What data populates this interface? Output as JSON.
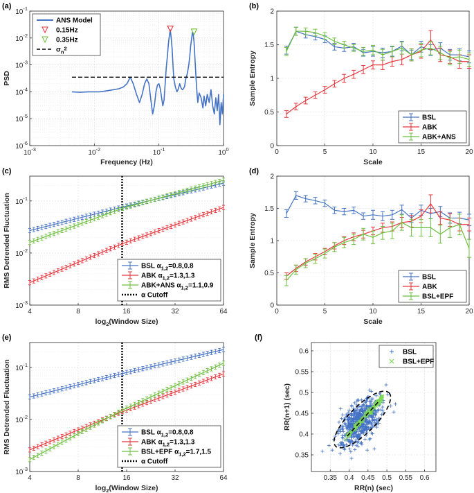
{
  "colors": {
    "BSL": "#4472c4",
    "ABK": "#e8343b",
    "ABK+ANS": "#6cbf3c",
    "BSL+EPF": "#6cbf3c",
    "BSL+EPF_f": "#7ed957",
    "cutoff": "#000000",
    "peak1": "#e8343b",
    "peak2": "#6cbf3c"
  },
  "chart_data": [
    {
      "id": "a",
      "panel_label": "(a)",
      "type": "line",
      "xscale": "log",
      "yscale": "log",
      "xlim": [
        0.001,
        1
      ],
      "ylim": [
        1e-06,
        0.1
      ],
      "xlabel": "Frequency (Hz)",
      "ylabel": "PSD",
      "xticks": [
        0.001,
        0.01,
        0.1,
        1
      ],
      "xtick_labels": [
        "10-3",
        "10-2",
        "10-1",
        "100"
      ],
      "yticks": [
        1e-06,
        1e-05,
        0.0001,
        0.001,
        0.01,
        0.1
      ],
      "ytick_labels": [
        "10-6",
        "10-5",
        "10-4",
        "10-3",
        "10-2",
        "10-1"
      ],
      "legend_position": "top-left",
      "legend": [
        "ANS Model",
        "0.15Hz",
        "0.35Hz",
        "σn2"
      ],
      "series": [
        {
          "name": "ANS Model",
          "x": [
            0.0045,
            0.006,
            0.008,
            0.012,
            0.016,
            0.02,
            0.024,
            0.028,
            0.032,
            0.036,
            0.04,
            0.045,
            0.05,
            0.055,
            0.06,
            0.065,
            0.07,
            0.075,
            0.08,
            0.085,
            0.09,
            0.095,
            0.1,
            0.105,
            0.11,
            0.115,
            0.12,
            0.125,
            0.13,
            0.135,
            0.14,
            0.145,
            0.15,
            0.155,
            0.16,
            0.165,
            0.17,
            0.18,
            0.19,
            0.2,
            0.21,
            0.22,
            0.23,
            0.24,
            0.25,
            0.26,
            0.27,
            0.28,
            0.29,
            0.3,
            0.31,
            0.32,
            0.33,
            0.34,
            0.35,
            0.36,
            0.37,
            0.38,
            0.39,
            0.4,
            0.42,
            0.45,
            0.48,
            0.5,
            0.53,
            0.56,
            0.6,
            0.64,
            0.68,
            0.72,
            0.76,
            0.8,
            0.84,
            0.88,
            0.92,
            0.96,
            1.0
          ],
          "values": [
            0.0001,
            9.6e-05,
            0.0001,
            0.0001,
            0.00011,
            0.00012,
            0.00013,
            0.00015,
            0.0002,
            0.00035,
            0.0002,
            8e-05,
            4e-05,
            8e-05,
            0.0002,
            0.0003,
            0.0002,
            5e-05,
            1.5e-05,
            3e-05,
            0.0001,
            0.00018,
            0.0002,
            0.00013,
            6e-05,
            3e-05,
            5e-05,
            0.0002,
            0.0008,
            0.002,
            0.006,
            0.012,
            0.02,
            0.01,
            0.004,
            0.001,
            0.0003,
            0.00015,
            0.0001,
            0.00013,
            0.0002,
            0.00014,
            0.00012,
            0.00013,
            0.00016,
            0.0003,
            0.0004,
            0.0006,
            0.001,
            0.002,
            0.005,
            0.009,
            0.016,
            0.013,
            0.007,
            0.002,
            0.0006,
            0.0002,
            8e-05,
            4e-05,
            9e-05,
            6e-05,
            2.5e-05,
            7e-05,
            3e-05,
            8e-05,
            4e-05,
            0.00012,
            3e-05,
            1.5e-05,
            6e-05,
            2e-05,
            8e-05,
            6e-06,
            4e-05,
            1.5e-05,
            8e-05
          ]
        },
        {
          "name": "0.15Hz",
          "marker": "triangle-down",
          "x": [
            0.15
          ],
          "values": [
            0.022
          ]
        },
        {
          "name": "0.35Hz",
          "marker": "triangle-down",
          "x": [
            0.35
          ],
          "values": [
            0.017
          ]
        },
        {
          "name": "σn2",
          "style": "dashed",
          "x": [
            0.0045,
            1.0
          ],
          "values": [
            0.00035,
            0.00035
          ]
        }
      ]
    },
    {
      "id": "b",
      "panel_label": "(b)",
      "type": "line",
      "xlim": [
        0,
        20
      ],
      "ylim": [
        0,
        2
      ],
      "xlabel": "Scale",
      "ylabel": "Sample Entropy",
      "xticks": [
        0,
        5,
        10,
        15,
        20
      ],
      "yticks": [
        0,
        0.5,
        1,
        1.5,
        2
      ],
      "legend_position": "bottom-right",
      "legend": [
        "BSL",
        "ABK",
        "ABK+ANS"
      ],
      "x": [
        1,
        2,
        3,
        4,
        5,
        6,
        7,
        8,
        9,
        10,
        11,
        12,
        13,
        14,
        15,
        16,
        17,
        18,
        19,
        20
      ],
      "series": [
        {
          "name": "BSL",
          "values": [
            1.42,
            1.7,
            1.65,
            1.62,
            1.58,
            1.47,
            1.45,
            1.47,
            1.38,
            1.4,
            1.38,
            1.4,
            1.48,
            1.35,
            1.47,
            1.42,
            1.45,
            1.35,
            1.35,
            1.32
          ],
          "errors": [
            0.06,
            0.06,
            0.05,
            0.05,
            0.05,
            0.05,
            0.05,
            0.05,
            0.05,
            0.07,
            0.07,
            0.07,
            0.07,
            0.07,
            0.08,
            0.08,
            0.08,
            0.08,
            0.09,
            0.09
          ]
        },
        {
          "name": "ABK",
          "values": [
            0.47,
            0.58,
            0.67,
            0.75,
            0.83,
            0.92,
            1.0,
            1.06,
            1.13,
            1.2,
            1.2,
            1.25,
            1.28,
            1.35,
            1.4,
            1.57,
            1.35,
            1.32,
            1.25,
            1.25
          ],
          "errors": [
            0.05,
            0.05,
            0.05,
            0.05,
            0.05,
            0.05,
            0.06,
            0.06,
            0.06,
            0.06,
            0.07,
            0.07,
            0.08,
            0.09,
            0.1,
            0.14,
            0.1,
            0.1,
            0.1,
            0.1
          ]
        },
        {
          "name": "ABK+ANS",
          "values": [
            1.4,
            1.7,
            1.7,
            1.68,
            1.63,
            1.55,
            1.5,
            1.45,
            1.4,
            1.42,
            1.35,
            1.4,
            1.45,
            1.35,
            1.42,
            1.45,
            1.38,
            1.3,
            1.32,
            1.28
          ],
          "errors": [
            0.06,
            0.06,
            0.05,
            0.05,
            0.05,
            0.05,
            0.05,
            0.05,
            0.06,
            0.07,
            0.08,
            0.08,
            0.09,
            0.09,
            0.1,
            0.1,
            0.1,
            0.1,
            0.1,
            0.1
          ]
        }
      ]
    },
    {
      "id": "c",
      "panel_label": "(c)",
      "type": "line",
      "xscale": "log2",
      "yscale": "log",
      "xlim": [
        4,
        64
      ],
      "ylim": [
        0.001,
        0.3
      ],
      "xlabel": "log2(Window Size)",
      "ylabel": "RMS Detrended Fluctuation",
      "xticks": [
        4,
        8,
        16,
        32,
        64
      ],
      "yticks": [
        0.001,
        0.01,
        0.1
      ],
      "ytick_labels": [
        "10-3",
        "10-2",
        "10-1"
      ],
      "cutoff_x": 15,
      "legend_position": "bottom-right",
      "legend": [
        "BSL α1,2=0.8,0.8",
        "ABK α1,2=1.3,1.3",
        "ABK+ANS α1,2=1.1,0.9",
        "α Cutoff"
      ],
      "series": [
        {
          "name": "BSL",
          "alpha": "α1,2=0.8,0.8",
          "x0": 4,
          "y0": 0.027,
          "xc": 15,
          "yc": 0.076,
          "x1": 64,
          "y1": 0.22
        },
        {
          "name": "ABK",
          "alpha": "α1,2=1.3,1.3",
          "x0": 4,
          "y0": 0.0027,
          "xc": 15,
          "yc": 0.015,
          "x1": 64,
          "y1": 0.075
        },
        {
          "name": "ABK+ANS",
          "alpha": "α1,2=1.1,0.9",
          "x0": 4,
          "y0": 0.016,
          "xc": 15,
          "yc": 0.072,
          "x1": 64,
          "y1": 0.25
        }
      ]
    },
    {
      "id": "d",
      "panel_label": "(d)",
      "type": "line",
      "xlim": [
        0,
        20
      ],
      "ylim": [
        0,
        2
      ],
      "xlabel": "Scale",
      "ylabel": "Sample Entropy",
      "xticks": [
        0,
        5,
        10,
        15,
        20
      ],
      "yticks": [
        0,
        0.5,
        1,
        1.5,
        2
      ],
      "legend_position": "bottom-right",
      "legend": [
        "BSL",
        "ABK",
        "BSL+EPF"
      ],
      "x": [
        1,
        2,
        3,
        4,
        5,
        6,
        7,
        8,
        9,
        10,
        11,
        12,
        13,
        14,
        15,
        16,
        17,
        18,
        19,
        20
      ],
      "series": [
        {
          "name": "BSL",
          "values": [
            1.42,
            1.7,
            1.65,
            1.62,
            1.58,
            1.47,
            1.45,
            1.47,
            1.38,
            1.4,
            1.38,
            1.4,
            1.48,
            1.35,
            1.47,
            1.42,
            1.45,
            1.35,
            1.35,
            1.32
          ],
          "errors": [
            0.06,
            0.06,
            0.05,
            0.05,
            0.05,
            0.05,
            0.05,
            0.05,
            0.05,
            0.07,
            0.07,
            0.07,
            0.07,
            0.07,
            0.08,
            0.08,
            0.08,
            0.08,
            0.09,
            0.09
          ]
        },
        {
          "name": "ABK",
          "values": [
            0.45,
            0.57,
            0.67,
            0.75,
            0.83,
            0.92,
            1.0,
            1.06,
            1.1,
            1.15,
            1.2,
            1.22,
            1.28,
            1.3,
            1.38,
            1.57,
            1.35,
            1.32,
            1.25,
            1.25
          ],
          "errors": [
            0.05,
            0.05,
            0.05,
            0.05,
            0.05,
            0.05,
            0.06,
            0.06,
            0.06,
            0.06,
            0.07,
            0.07,
            0.08,
            0.09,
            0.1,
            0.14,
            0.1,
            0.1,
            0.1,
            0.1
          ]
        },
        {
          "name": "BSL+EPF",
          "values": [
            0.38,
            0.55,
            0.65,
            0.72,
            0.8,
            0.9,
            0.97,
            1.02,
            1.1,
            1.05,
            1.12,
            1.15,
            1.28,
            1.2,
            1.2,
            1.2,
            1.1,
            1.2,
            1.25,
            0.88
          ],
          "errors": [
            0.08,
            0.07,
            0.07,
            0.07,
            0.07,
            0.07,
            0.08,
            0.08,
            0.09,
            0.1,
            0.1,
            0.12,
            0.12,
            0.13,
            0.13,
            0.14,
            0.14,
            0.15,
            0.16,
            0.14
          ]
        }
      ]
    },
    {
      "id": "e",
      "panel_label": "(e)",
      "type": "line",
      "xscale": "log2",
      "yscale": "log",
      "xlim": [
        4,
        64
      ],
      "ylim": [
        0.001,
        0.3
      ],
      "xlabel": "log2(Window Size)",
      "ylabel": "RMS Detrended Fluctuation",
      "xticks": [
        4,
        8,
        16,
        32,
        64
      ],
      "yticks": [
        0.001,
        0.01,
        0.1
      ],
      "ytick_labels": [
        "10-3",
        "10-2",
        "10-1"
      ],
      "cutoff_x": 15,
      "legend_position": "bottom-right",
      "legend": [
        "BSL α1,2=0.8,0.8",
        "ABK α1,2=1.3,1.3",
        "BSL+EPF α1,2=1.7,1.5",
        "α Cutoff"
      ],
      "series": [
        {
          "name": "BSL",
          "alpha": "α1,2=0.8,0.8",
          "x0": 4,
          "y0": 0.027,
          "xc": 15,
          "yc": 0.076,
          "x1": 64,
          "y1": 0.22
        },
        {
          "name": "ABK",
          "alpha": "α1,2=1.3,1.3",
          "x0": 4,
          "y0": 0.0026,
          "xc": 15,
          "yc": 0.014,
          "x1": 64,
          "y1": 0.075
        },
        {
          "name": "BSL+EPF",
          "alpha": "α1,2=1.7,1.5",
          "x0": 4,
          "y0": 0.0017,
          "xc": 15,
          "yc": 0.015,
          "x1": 64,
          "y1": 0.12
        }
      ]
    },
    {
      "id": "f",
      "panel_label": "(f)",
      "type": "scatter",
      "xlim": [
        0.3,
        0.63
      ],
      "ylim": [
        0.31,
        0.62
      ],
      "xlabel": "RR(n) (sec)",
      "ylabel": "RR(n+1) (sec)",
      "xticks": [
        0.35,
        0.4,
        0.45,
        0.5,
        0.55,
        0.6
      ],
      "yticks": [
        0.35,
        0.4,
        0.45,
        0.5,
        0.55,
        0.6
      ],
      "legend_position": "top-right",
      "legend": [
        "BSL",
        "BSL+EPF"
      ],
      "series": [
        {
          "name": "BSL",
          "marker": "+",
          "center": [
            0.43,
            0.43
          ],
          "n_points": 600,
          "spread_major": 0.035,
          "spread_minor": 0.018
        },
        {
          "name": "BSL+EPF",
          "marker": "x",
          "x_range": [
            0.39,
            0.49
          ],
          "slope": 1.0,
          "n_points": 120
        }
      ],
      "ellipse": {
        "center": [
          0.435,
          0.435
        ],
        "semi_major": 0.1,
        "semi_minor": 0.035,
        "angle_deg": 45
      }
    }
  ]
}
